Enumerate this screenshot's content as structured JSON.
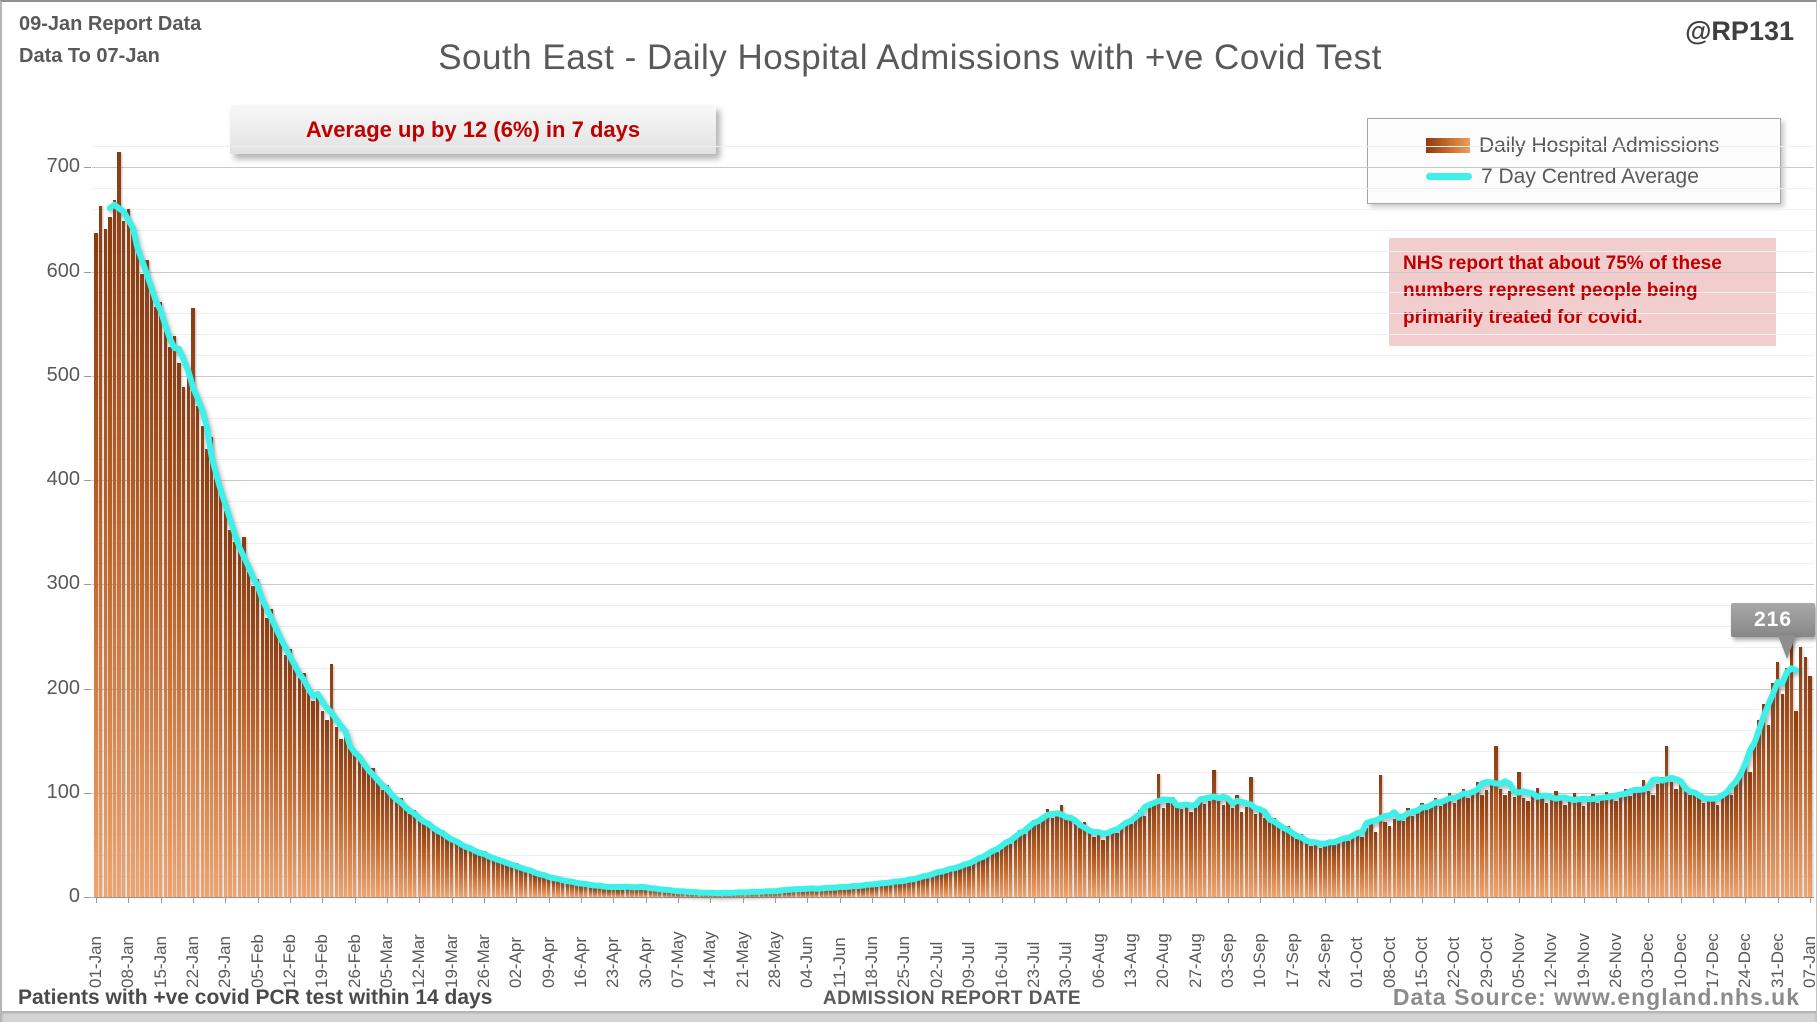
{
  "header": {
    "report_line1": "09-Jan Report Data",
    "report_line2": "Data To 07-Jan",
    "handle": "@RP131",
    "title": "South East - Daily Hospital Admissions with +ve Covid Test"
  },
  "annotation_box": {
    "text": "Average up by 12 (6%) in 7 days"
  },
  "nhs_note": {
    "text": "NHS report that about 75% of these numbers represent people being primarily treated for covid."
  },
  "footer": {
    "left_note": "Patients with +ve covid PCR test within 14 days",
    "axis_title": "ADMISSION REPORT DATE",
    "source": "Data Source: www.england.nhs.uk"
  },
  "colors": {
    "bar_top": "#8a3b10",
    "bar_bottom": "#f0a46c",
    "avg_line": "#3ff0e8",
    "annotation_red": "#c00000",
    "nhs_bg": "#f2cdcd",
    "text_gray": "#595959"
  },
  "chart_data": {
    "type": "bar",
    "title": "South East - Daily Hospital Admissions with +ve Covid Test",
    "xlabel": "ADMISSION REPORT DATE",
    "ylabel": "",
    "ylim": [
      0,
      755
    ],
    "y_ticks": [
      0,
      100,
      200,
      300,
      400,
      500,
      600,
      700
    ],
    "grid": {
      "major_step": 100,
      "minor_step": 20
    },
    "legend_position": "top-right",
    "series": [
      {
        "name": "Daily Hospital Admissions",
        "type": "bar"
      },
      {
        "name": "7 Day Centred Average",
        "type": "line",
        "note": "computed as 7-day centred mean of daily_values"
      }
    ],
    "end_callout": {
      "label": "216",
      "series": "7 Day Centred Average"
    },
    "x_tick_labels": [
      "01-Jan",
      "08-Jan",
      "15-Jan",
      "22-Jan",
      "29-Jan",
      "05-Feb",
      "12-Feb",
      "19-Feb",
      "26-Feb",
      "05-Mar",
      "12-Mar",
      "19-Mar",
      "26-Mar",
      "02-Apr",
      "09-Apr",
      "16-Apr",
      "23-Apr",
      "30-Apr",
      "07-May",
      "14-May",
      "21-May",
      "28-May",
      "04-Jun",
      "11-Jun",
      "18-Jun",
      "25-Jun",
      "02-Jul",
      "09-Jul",
      "16-Jul",
      "23-Jul",
      "30-Jul",
      "06-Aug",
      "13-Aug",
      "20-Aug",
      "27-Aug",
      "03-Sep",
      "10-Sep",
      "17-Sep",
      "24-Sep",
      "01-Oct",
      "08-Oct",
      "15-Oct",
      "22-Oct",
      "29-Oct",
      "05-Nov",
      "12-Nov",
      "19-Nov",
      "26-Nov",
      "03-Dec",
      "10-Dec",
      "17-Dec",
      "24-Dec",
      "31-Dec",
      "07-Jan"
    ],
    "x_tick_day_step": 7,
    "daily_values": [
      637,
      663,
      641,
      652,
      669,
      715,
      649,
      660,
      637,
      621,
      598,
      611,
      580,
      566,
      571,
      545,
      528,
      538,
      512,
      489,
      503,
      565,
      471,
      452,
      430,
      441,
      408,
      390,
      370,
      352,
      341,
      333,
      345,
      312,
      298,
      305,
      285,
      268,
      276,
      256,
      246,
      232,
      238,
      219,
      210,
      215,
      196,
      188,
      193,
      178,
      170,
      224,
      163,
      152,
      158,
      146,
      138,
      131,
      126,
      119,
      124,
      110,
      103,
      107,
      96,
      91,
      95,
      84,
      80,
      83,
      74,
      70,
      73,
      65,
      61,
      64,
      57,
      53,
      56,
      49,
      46,
      49,
      43,
      41,
      44,
      38,
      36,
      38,
      33,
      31,
      30,
      33,
      27,
      25,
      28,
      22,
      20,
      23,
      18,
      17,
      19,
      15,
      14,
      16,
      13,
      12,
      14,
      11,
      10,
      12,
      9,
      9,
      11,
      8,
      8,
      10,
      12,
      9,
      11,
      8,
      8,
      10,
      7,
      6,
      8,
      5,
      5,
      7,
      4,
      4,
      6,
      4,
      3,
      5,
      3,
      3,
      5,
      4,
      3,
      5,
      4,
      4,
      6,
      5,
      4,
      6,
      5,
      5,
      7,
      6,
      6,
      8,
      10,
      7,
      7,
      9,
      7,
      8,
      10,
      8,
      8,
      11,
      9,
      9,
      12,
      10,
      10,
      13,
      11,
      12,
      15,
      13,
      13,
      16,
      14,
      15,
      18,
      16,
      17,
      21,
      19,
      22,
      26,
      23,
      25,
      29,
      26,
      28,
      33,
      30,
      34,
      39,
      36,
      41,
      46,
      43,
      49,
      55,
      51,
      58,
      64,
      60,
      68,
      74,
      70,
      78,
      84,
      76,
      82,
      88,
      79,
      75,
      70,
      66,
      72,
      63,
      58,
      62,
      55,
      60,
      66,
      61,
      68,
      74,
      70,
      77,
      83,
      78,
      86,
      92,
      118,
      85,
      90,
      96,
      88,
      84,
      90,
      82,
      86,
      95,
      89,
      92,
      122,
      96,
      88,
      92,
      85,
      98,
      82,
      86,
      115,
      80,
      84,
      76,
      72,
      76,
      68,
      64,
      68,
      60,
      56,
      60,
      52,
      49,
      54,
      47,
      50,
      55,
      50,
      53,
      58,
      54,
      60,
      63,
      58,
      66,
      70,
      62,
      117,
      72,
      68,
      75,
      80,
      73,
      85,
      78,
      82,
      90,
      84,
      88,
      95,
      87,
      92,
      100,
      90,
      96,
      104,
      95,
      100,
      110,
      98,
      103,
      112,
      145,
      104,
      98,
      102,
      96,
      120,
      95,
      92,
      99,
      105,
      95,
      90,
      97,
      102,
      93,
      88,
      96,
      100,
      92,
      87,
      95,
      99,
      90,
      94,
      101,
      96,
      92,
      98,
      104,
      97,
      100,
      106,
      112,
      102,
      98,
      108,
      115,
      145,
      110,
      104,
      112,
      107,
      98,
      103,
      95,
      90,
      97,
      92,
      88,
      96,
      102,
      98,
      110,
      118,
      132,
      120,
      148,
      170,
      185,
      165,
      205,
      225,
      195,
      220,
      248,
      178,
      240,
      230,
      212
    ]
  }
}
